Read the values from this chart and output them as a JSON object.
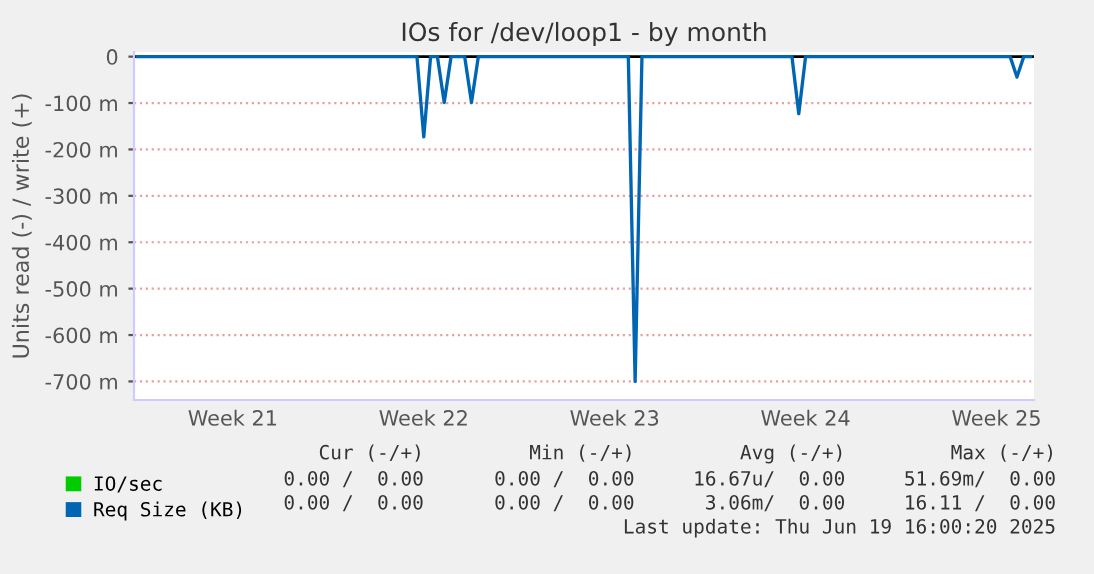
{
  "chart_data": {
    "type": "line",
    "title": "IOs for /dev/loop1 - by month",
    "ylabel": "Units read (-) / write (+)",
    "categories": [
      null,
      null,
      null,
      null,
      null,
      null,
      null,
      null,
      null,
      null,
      null,
      null,
      null,
      null,
      "Week 21",
      null,
      null,
      null,
      null,
      null,
      null,
      null,
      null,
      null,
      null,
      null,
      null,
      null,
      null,
      null,
      null,
      null,
      null,
      null,
      null,
      null,
      null,
      null,
      null,
      null,
      null,
      null,
      "Week 22",
      null,
      null,
      null,
      null,
      null,
      null,
      null,
      null,
      null,
      null,
      null,
      null,
      null,
      null,
      null,
      null,
      null,
      null,
      null,
      null,
      null,
      null,
      null,
      null,
      null,
      null,
      null,
      "Week 23",
      null,
      null,
      null,
      null,
      null,
      null,
      null,
      null,
      null,
      null,
      null,
      null,
      null,
      null,
      null,
      null,
      null,
      null,
      null,
      null,
      null,
      null,
      null,
      null,
      null,
      null,
      null,
      "Week 24",
      null,
      null,
      null,
      null,
      null,
      null,
      null,
      null,
      null,
      null,
      null,
      null,
      null,
      null,
      null,
      null,
      null,
      null,
      null,
      null,
      null,
      null,
      null,
      null,
      null,
      null,
      null,
      "Week 25",
      null,
      null,
      null,
      null,
      null
    ],
    "series": [
      {
        "name": "IO/sec",
        "color": "#00cc00",
        "values": [
          null,
          null,
          null,
          null,
          null,
          null,
          null,
          null,
          null,
          null,
          null,
          null,
          null,
          null,
          null,
          null,
          null,
          null,
          null,
          null,
          null,
          null,
          null,
          null,
          null,
          null,
          null,
          null,
          null,
          null,
          null,
          null,
          null,
          null,
          null,
          null,
          null,
          null,
          null,
          null,
          null,
          null,
          null,
          null,
          null,
          null,
          null,
          null,
          null,
          null,
          null,
          null,
          null,
          null,
          null,
          null,
          null,
          null,
          null,
          null,
          null,
          null,
          null,
          null,
          null,
          null,
          null,
          null,
          null,
          null,
          null,
          null,
          null,
          null,
          null,
          null,
          null,
          null,
          null,
          null,
          null,
          null,
          null,
          null,
          null,
          null,
          null,
          null,
          null,
          null,
          null,
          null,
          null,
          null,
          null,
          null,
          null,
          null,
          null,
          null,
          null,
          null,
          null,
          null,
          null,
          null,
          null,
          null,
          null,
          null,
          null,
          null,
          null,
          null,
          null,
          null,
          null,
          null,
          null,
          null,
          null,
          null,
          null,
          null,
          null,
          null,
          null,
          null,
          null,
          null,
          null,
          null
        ]
      },
      {
        "name": "Req Size (KB)",
        "color": "#0066b3",
        "values": [
          0,
          0,
          0,
          0,
          0,
          0,
          0,
          0,
          0,
          0,
          0,
          0,
          0,
          0,
          0,
          0,
          0,
          0,
          0,
          0,
          0,
          0,
          0,
          0,
          0,
          0,
          0,
          0,
          0,
          0,
          0,
          0,
          0,
          0,
          0,
          0,
          0,
          0,
          0,
          0,
          0,
          0,
          -173,
          0,
          0,
          -99,
          0,
          0,
          0,
          -99,
          0,
          0,
          0,
          0,
          0,
          0,
          0,
          0,
          0,
          0,
          0,
          0,
          0,
          0,
          0,
          0,
          0,
          0,
          0,
          0,
          0,
          0,
          0,
          -700,
          0,
          0,
          0,
          0,
          0,
          0,
          0,
          0,
          0,
          0,
          0,
          0,
          0,
          0,
          0,
          0,
          0,
          0,
          0,
          0,
          0,
          0,
          0,
          -123,
          0,
          0,
          0,
          0,
          0,
          0,
          0,
          0,
          0,
          0,
          0,
          0,
          0,
          0,
          0,
          0,
          0,
          0,
          0,
          0,
          0,
          0,
          0,
          0,
          0,
          0,
          0,
          0,
          0,
          0,
          0,
          -44,
          0,
          0
        ]
      }
    ],
    "ylim": [
      -740,
      10
    ],
    "yticks": [
      0,
      {
        "value": -100,
        "label": "-100 m"
      },
      {
        "value": -200,
        "label": "-200 m"
      },
      {
        "value": -300,
        "label": "-300 m"
      },
      {
        "value": -400,
        "label": "-400 m"
      },
      {
        "value": -500,
        "label": "-500 m"
      },
      {
        "value": -600,
        "label": "-600 m"
      },
      {
        "value": -700,
        "label": "-700 m"
      }
    ],
    "ref_lines": [
      {
        "axis": "y",
        "value": 0,
        "color": "#000000"
      }
    ],
    "grid": "y",
    "legend": "bottom",
    "marker": "none",
    "line_style": "solid",
    "annotations": [
      "Cur (-/+)         Min (-/+)         Avg (-/+)         Max (-/+)",
      "0.00 /  0.00      0.00 /  0.00     16.67u/  0.00     51.69m/  0.00",
      "0.00 /  0.00      0.00 /  0.00      3.06m/  0.00     16.11 /  0.00",
      "Last update: Thu Jun 19 16:00:20 2025"
    ]
  }
}
